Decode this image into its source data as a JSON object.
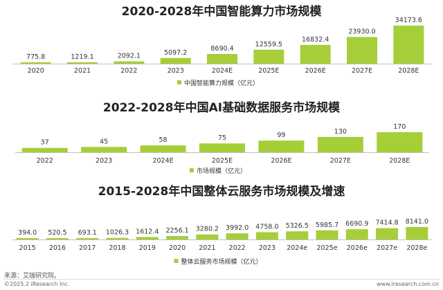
{
  "chart_data": [
    {
      "type": "bar",
      "title": "2020-2028年中国智能算力市场规模",
      "categories": [
        "2020",
        "2021",
        "2022",
        "2023",
        "2024E",
        "2025E",
        "2026E",
        "2027E",
        "2028E"
      ],
      "values": [
        775.8,
        1219.1,
        2092.1,
        5097.2,
        8690.4,
        12559.5,
        16832.4,
        23930.0,
        34173.6
      ],
      "value_labels": [
        "775.8",
        "1219.1",
        "2092.1",
        "5097.2",
        "8690.4",
        "12559.5",
        "16832.4",
        "23930.0",
        "34173.6"
      ],
      "series_name": "中国智能算力规模（亿元）",
      "color": "#a6ce39",
      "legend": "bottom-center"
    },
    {
      "type": "bar",
      "title": "2022-2028年中国AI基础数据服务市场规模",
      "categories": [
        "2022",
        "2023",
        "2024E",
        "2025E",
        "2026E",
        "2027E",
        "2028E"
      ],
      "values": [
        37,
        45,
        58,
        75,
        99,
        130,
        170
      ],
      "value_labels": [
        "37",
        "45",
        "58",
        "75",
        "99",
        "130",
        "170"
      ],
      "series_name": "市场规模（亿元）",
      "color": "#a6ce39",
      "legend": "bottom-center"
    },
    {
      "type": "bar",
      "title": "2015-2028年中国整体云服务市场规模及增速",
      "categories": [
        "2015",
        "2016",
        "2017",
        "2018",
        "2019",
        "2020",
        "2021",
        "2022",
        "2023",
        "2024e",
        "2025e",
        "2026e",
        "2027e",
        "2028e"
      ],
      "values": [
        394.0,
        520.5,
        693.1,
        1026.3,
        1612.4,
        2256.1,
        3280.2,
        3992.0,
        4758.0,
        5326.5,
        5985.7,
        6690.9,
        7414.8,
        8141.0
      ],
      "value_labels": [
        "394.0",
        "520.5",
        "693.1",
        "1026.3",
        "1612.4",
        "2256.1",
        "3280.2",
        "3992.0",
        "4758.0",
        "5326.5",
        "5985.7",
        "6690.9",
        "7414.8",
        "8141.0"
      ],
      "series_name": "整体云服务市场规模（亿元）",
      "color": "#a6ce39",
      "legend": "bottom-center"
    }
  ],
  "footer": {
    "source": "来源：艾瑞研究院。",
    "copyright": "©2025.2 iResearch Inc.",
    "website": "www.iresearch.com.cn"
  }
}
